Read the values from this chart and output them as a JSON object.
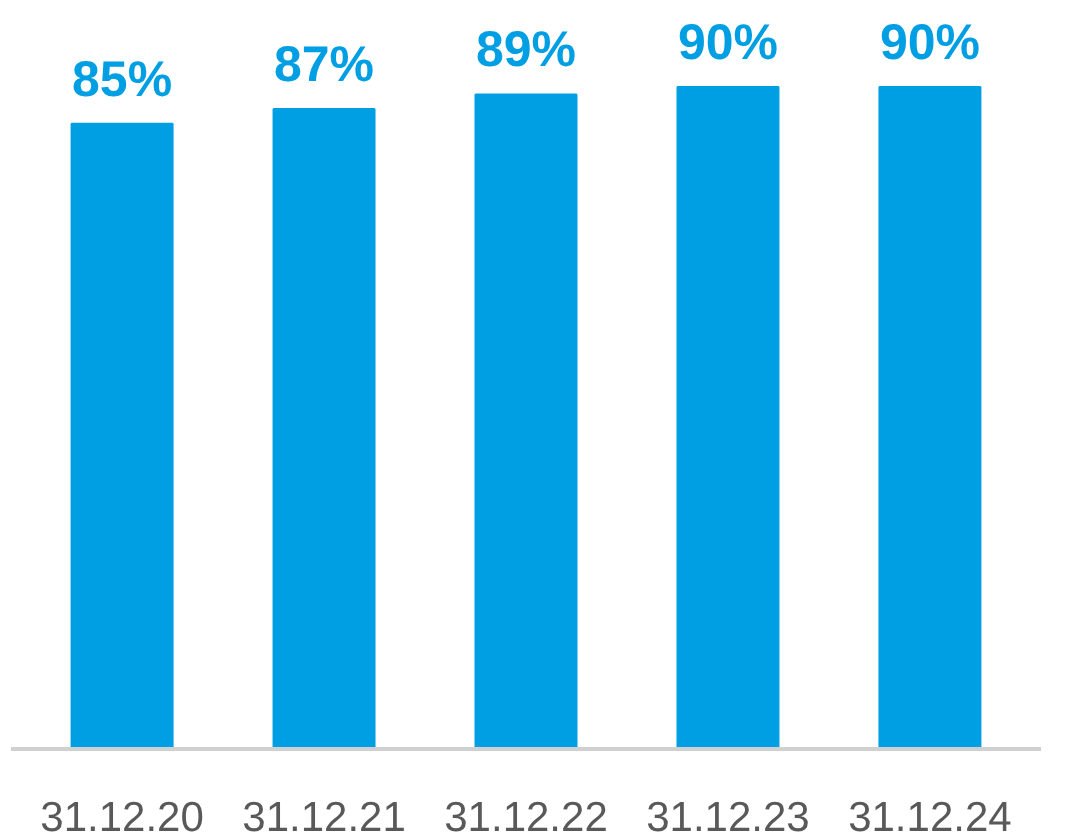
{
  "chart_data": {
    "type": "bar",
    "categories": [
      "31.12.20",
      "31.12.21",
      "31.12.22",
      "31.12.23",
      "31.12.24"
    ],
    "values": [
      85,
      87,
      89,
      90,
      90
    ],
    "value_labels": [
      "85%",
      "87%",
      "89%",
      "90%",
      "90%"
    ],
    "color": "#009fe3",
    "grid": false
  }
}
